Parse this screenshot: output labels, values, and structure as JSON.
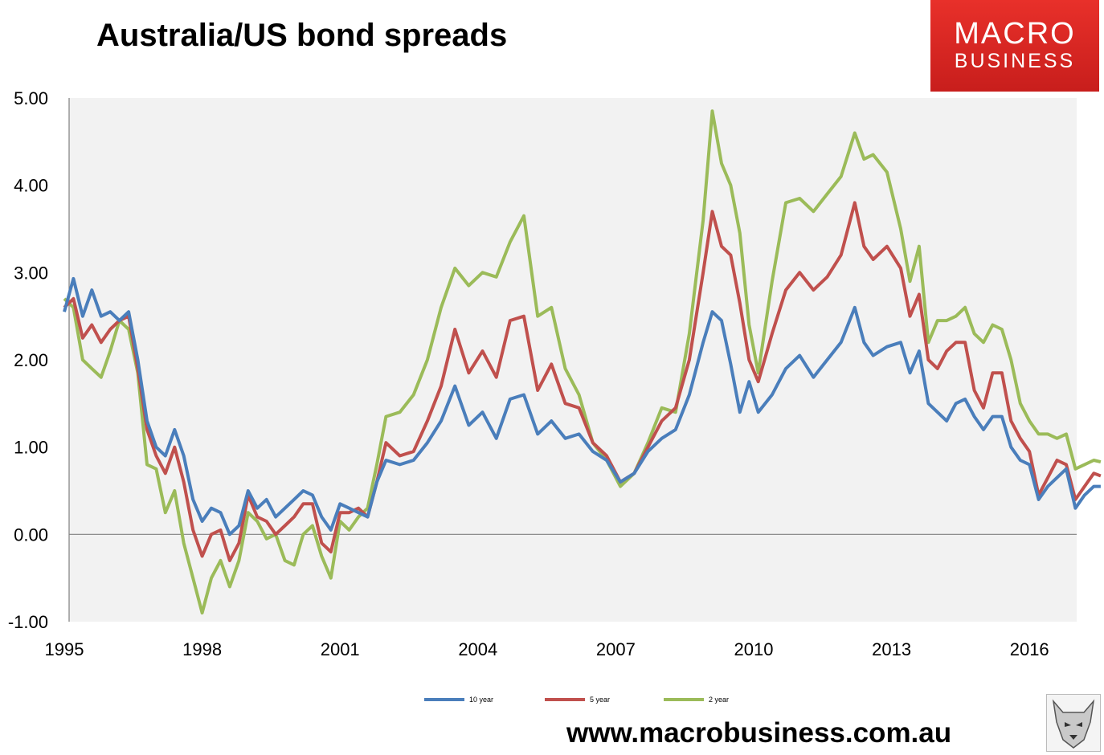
{
  "header": {
    "title": "Australia/US bond spreads"
  },
  "logo": {
    "line1": "MACRO",
    "line2": "BUSINESS",
    "color": "#d42a24"
  },
  "footer": {
    "url": "www.macrobusiness.com.au",
    "mascot_icon": "wolf-icon"
  },
  "chart_data": {
    "type": "line",
    "title": "Australia/US bond spreads",
    "xlabel": "",
    "ylabel": "",
    "xlim": [
      1995,
      2016.9
    ],
    "ylim": [
      -1.0,
      5.0
    ],
    "y_ticks": [
      -1.0,
      0.0,
      1.0,
      2.0,
      3.0,
      4.0,
      5.0
    ],
    "y_tick_labels": [
      "-1.00",
      "0.00",
      "1.00",
      "2.00",
      "3.00",
      "4.00",
      "5.00"
    ],
    "x_ticks": [
      1995,
      1998,
      2001,
      2004,
      2007,
      2010,
      2013,
      2016
    ],
    "x_tick_labels": [
      "1995",
      "1998",
      "2001",
      "2004",
      "2007",
      "2010",
      "2013",
      "2016"
    ],
    "grid": false,
    "legend": "bottom",
    "plot_background": "#f2f2f2",
    "series": [
      {
        "name": "10 year",
        "color": "#4a7ebb",
        "points": [
          [
            1995.0,
            2.55
          ],
          [
            1995.2,
            2.93
          ],
          [
            1995.4,
            2.5
          ],
          [
            1995.6,
            2.8
          ],
          [
            1995.8,
            2.5
          ],
          [
            1996.0,
            2.55
          ],
          [
            1996.2,
            2.45
          ],
          [
            1996.4,
            2.55
          ],
          [
            1996.6,
            2.0
          ],
          [
            1996.8,
            1.3
          ],
          [
            1997.0,
            1.0
          ],
          [
            1997.2,
            0.9
          ],
          [
            1997.4,
            1.2
          ],
          [
            1997.6,
            0.9
          ],
          [
            1997.8,
            0.4
          ],
          [
            1998.0,
            0.15
          ],
          [
            1998.2,
            0.3
          ],
          [
            1998.4,
            0.25
          ],
          [
            1998.6,
            0.0
          ],
          [
            1998.8,
            0.1
          ],
          [
            1999.0,
            0.5
          ],
          [
            1999.2,
            0.3
          ],
          [
            1999.4,
            0.4
          ],
          [
            1999.6,
            0.2
          ],
          [
            1999.8,
            0.3
          ],
          [
            2000.0,
            0.4
          ],
          [
            2000.2,
            0.5
          ],
          [
            2000.4,
            0.45
          ],
          [
            2000.6,
            0.2
          ],
          [
            2000.8,
            0.05
          ],
          [
            2001.0,
            0.35
          ],
          [
            2001.2,
            0.3
          ],
          [
            2001.4,
            0.25
          ],
          [
            2001.6,
            0.2
          ],
          [
            2001.8,
            0.6
          ],
          [
            2002.0,
            0.85
          ],
          [
            2002.3,
            0.8
          ],
          [
            2002.6,
            0.85
          ],
          [
            2002.9,
            1.05
          ],
          [
            2003.2,
            1.3
          ],
          [
            2003.5,
            1.7
          ],
          [
            2003.8,
            1.25
          ],
          [
            2004.1,
            1.4
          ],
          [
            2004.4,
            1.1
          ],
          [
            2004.7,
            1.55
          ],
          [
            2005.0,
            1.6
          ],
          [
            2005.3,
            1.15
          ],
          [
            2005.6,
            1.3
          ],
          [
            2005.9,
            1.1
          ],
          [
            2006.2,
            1.15
          ],
          [
            2006.5,
            0.95
          ],
          [
            2006.8,
            0.85
          ],
          [
            2007.1,
            0.6
          ],
          [
            2007.4,
            0.7
          ],
          [
            2007.7,
            0.95
          ],
          [
            2008.0,
            1.1
          ],
          [
            2008.3,
            1.2
          ],
          [
            2008.6,
            1.6
          ],
          [
            2008.9,
            2.2
          ],
          [
            2009.1,
            2.55
          ],
          [
            2009.3,
            2.45
          ],
          [
            2009.5,
            1.95
          ],
          [
            2009.7,
            1.4
          ],
          [
            2009.9,
            1.75
          ],
          [
            2010.1,
            1.4
          ],
          [
            2010.4,
            1.6
          ],
          [
            2010.7,
            1.9
          ],
          [
            2011.0,
            2.05
          ],
          [
            2011.3,
            1.8
          ],
          [
            2011.6,
            2.0
          ],
          [
            2011.9,
            2.2
          ],
          [
            2012.2,
            2.6
          ],
          [
            2012.4,
            2.2
          ],
          [
            2012.6,
            2.05
          ],
          [
            2012.9,
            2.15
          ],
          [
            2013.2,
            2.2
          ],
          [
            2013.4,
            1.85
          ],
          [
            2013.6,
            2.1
          ],
          [
            2013.8,
            1.5
          ],
          [
            2014.0,
            1.4
          ],
          [
            2014.2,
            1.3
          ],
          [
            2014.4,
            1.5
          ],
          [
            2014.6,
            1.55
          ],
          [
            2014.8,
            1.35
          ],
          [
            2015.0,
            1.2
          ],
          [
            2015.2,
            1.35
          ],
          [
            2015.4,
            1.35
          ],
          [
            2015.6,
            1.0
          ],
          [
            2015.8,
            0.85
          ],
          [
            2016.0,
            0.8
          ],
          [
            2016.2,
            0.4
          ],
          [
            2016.4,
            0.55
          ],
          [
            2016.6,
            0.65
          ],
          [
            2016.8,
            0.75
          ],
          [
            2017.0,
            0.3
          ],
          [
            2017.2,
            0.45
          ],
          [
            2017.4,
            0.55
          ],
          [
            2017.55,
            0.55
          ]
        ]
      },
      {
        "name": "5 year",
        "color": "#c0504d",
        "points": [
          [
            1995.0,
            2.6
          ],
          [
            1995.2,
            2.7
          ],
          [
            1995.4,
            2.25
          ],
          [
            1995.6,
            2.4
          ],
          [
            1995.8,
            2.2
          ],
          [
            1996.0,
            2.35
          ],
          [
            1996.2,
            2.45
          ],
          [
            1996.4,
            2.5
          ],
          [
            1996.6,
            1.9
          ],
          [
            1996.8,
            1.2
          ],
          [
            1997.0,
            0.9
          ],
          [
            1997.2,
            0.7
          ],
          [
            1997.4,
            1.0
          ],
          [
            1997.6,
            0.6
          ],
          [
            1997.8,
            0.05
          ],
          [
            1998.0,
            -0.25
          ],
          [
            1998.2,
            0.0
          ],
          [
            1998.4,
            0.05
          ],
          [
            1998.6,
            -0.3
          ],
          [
            1998.8,
            -0.1
          ],
          [
            1999.0,
            0.45
          ],
          [
            1999.2,
            0.2
          ],
          [
            1999.4,
            0.15
          ],
          [
            1999.6,
            0.0
          ],
          [
            1999.8,
            0.1
          ],
          [
            2000.0,
            0.2
          ],
          [
            2000.2,
            0.35
          ],
          [
            2000.4,
            0.35
          ],
          [
            2000.6,
            -0.1
          ],
          [
            2000.8,
            -0.2
          ],
          [
            2001.0,
            0.25
          ],
          [
            2001.2,
            0.25
          ],
          [
            2001.4,
            0.3
          ],
          [
            2001.6,
            0.2
          ],
          [
            2001.8,
            0.6
          ],
          [
            2002.0,
            1.05
          ],
          [
            2002.3,
            0.9
          ],
          [
            2002.6,
            0.95
          ],
          [
            2002.9,
            1.3
          ],
          [
            2003.2,
            1.7
          ],
          [
            2003.5,
            2.35
          ],
          [
            2003.8,
            1.85
          ],
          [
            2004.1,
            2.1
          ],
          [
            2004.4,
            1.8
          ],
          [
            2004.7,
            2.45
          ],
          [
            2005.0,
            2.5
          ],
          [
            2005.3,
            1.65
          ],
          [
            2005.6,
            1.95
          ],
          [
            2005.9,
            1.5
          ],
          [
            2006.2,
            1.45
          ],
          [
            2006.5,
            1.05
          ],
          [
            2006.8,
            0.9
          ],
          [
            2007.1,
            0.6
          ],
          [
            2007.4,
            0.7
          ],
          [
            2007.7,
            1.0
          ],
          [
            2008.0,
            1.3
          ],
          [
            2008.3,
            1.45
          ],
          [
            2008.6,
            2.0
          ],
          [
            2008.9,
            3.0
          ],
          [
            2009.1,
            3.7
          ],
          [
            2009.3,
            3.3
          ],
          [
            2009.5,
            3.2
          ],
          [
            2009.7,
            2.65
          ],
          [
            2009.9,
            2.0
          ],
          [
            2010.1,
            1.75
          ],
          [
            2010.4,
            2.3
          ],
          [
            2010.7,
            2.8
          ],
          [
            2011.0,
            3.0
          ],
          [
            2011.3,
            2.8
          ],
          [
            2011.6,
            2.95
          ],
          [
            2011.9,
            3.2
          ],
          [
            2012.2,
            3.8
          ],
          [
            2012.4,
            3.3
          ],
          [
            2012.6,
            3.15
          ],
          [
            2012.9,
            3.3
          ],
          [
            2013.2,
            3.05
          ],
          [
            2013.4,
            2.5
          ],
          [
            2013.6,
            2.75
          ],
          [
            2013.8,
            2.0
          ],
          [
            2014.0,
            1.9
          ],
          [
            2014.2,
            2.1
          ],
          [
            2014.4,
            2.2
          ],
          [
            2014.6,
            2.2
          ],
          [
            2014.8,
            1.65
          ],
          [
            2015.0,
            1.45
          ],
          [
            2015.2,
            1.85
          ],
          [
            2015.4,
            1.85
          ],
          [
            2015.6,
            1.3
          ],
          [
            2015.8,
            1.1
          ],
          [
            2016.0,
            0.95
          ],
          [
            2016.2,
            0.45
          ],
          [
            2016.4,
            0.65
          ],
          [
            2016.6,
            0.85
          ],
          [
            2016.8,
            0.8
          ],
          [
            2017.0,
            0.4
          ],
          [
            2017.2,
            0.55
          ],
          [
            2017.4,
            0.7
          ],
          [
            2017.55,
            0.67
          ]
        ]
      },
      {
        "name": "2 year",
        "color": "#9bbb59",
        "points": [
          [
            1995.0,
            2.7
          ],
          [
            1995.2,
            2.6
          ],
          [
            1995.4,
            2.0
          ],
          [
            1995.6,
            1.9
          ],
          [
            1995.8,
            1.8
          ],
          [
            1996.0,
            2.1
          ],
          [
            1996.2,
            2.45
          ],
          [
            1996.4,
            2.35
          ],
          [
            1996.6,
            1.85
          ],
          [
            1996.8,
            0.8
          ],
          [
            1997.0,
            0.75
          ],
          [
            1997.2,
            0.25
          ],
          [
            1997.4,
            0.5
          ],
          [
            1997.6,
            -0.1
          ],
          [
            1997.8,
            -0.5
          ],
          [
            1998.0,
            -0.9
          ],
          [
            1998.2,
            -0.5
          ],
          [
            1998.4,
            -0.3
          ],
          [
            1998.6,
            -0.6
          ],
          [
            1998.8,
            -0.3
          ],
          [
            1999.0,
            0.25
          ],
          [
            1999.2,
            0.15
          ],
          [
            1999.4,
            -0.05
          ],
          [
            1999.6,
            0.0
          ],
          [
            1999.8,
            -0.3
          ],
          [
            2000.0,
            -0.35
          ],
          [
            2000.2,
            0.0
          ],
          [
            2000.4,
            0.1
          ],
          [
            2000.6,
            -0.25
          ],
          [
            2000.8,
            -0.5
          ],
          [
            2001.0,
            0.15
          ],
          [
            2001.2,
            0.05
          ],
          [
            2001.4,
            0.2
          ],
          [
            2001.6,
            0.3
          ],
          [
            2001.8,
            0.8
          ],
          [
            2002.0,
            1.35
          ],
          [
            2002.3,
            1.4
          ],
          [
            2002.6,
            1.6
          ],
          [
            2002.9,
            2.0
          ],
          [
            2003.2,
            2.6
          ],
          [
            2003.5,
            3.05
          ],
          [
            2003.8,
            2.85
          ],
          [
            2004.1,
            3.0
          ],
          [
            2004.4,
            2.95
          ],
          [
            2004.7,
            3.35
          ],
          [
            2005.0,
            3.65
          ],
          [
            2005.3,
            2.5
          ],
          [
            2005.6,
            2.6
          ],
          [
            2005.9,
            1.9
          ],
          [
            2006.2,
            1.6
          ],
          [
            2006.5,
            1.05
          ],
          [
            2006.8,
            0.85
          ],
          [
            2007.1,
            0.55
          ],
          [
            2007.4,
            0.7
          ],
          [
            2007.7,
            1.05
          ],
          [
            2008.0,
            1.45
          ],
          [
            2008.3,
            1.4
          ],
          [
            2008.6,
            2.3
          ],
          [
            2008.9,
            3.6
          ],
          [
            2009.1,
            4.85
          ],
          [
            2009.3,
            4.25
          ],
          [
            2009.5,
            4.0
          ],
          [
            2009.7,
            3.45
          ],
          [
            2009.9,
            2.4
          ],
          [
            2010.1,
            1.85
          ],
          [
            2010.4,
            2.9
          ],
          [
            2010.7,
            3.8
          ],
          [
            2011.0,
            3.85
          ],
          [
            2011.3,
            3.7
          ],
          [
            2011.6,
            3.9
          ],
          [
            2011.9,
            4.1
          ],
          [
            2012.2,
            4.6
          ],
          [
            2012.4,
            4.3
          ],
          [
            2012.6,
            4.35
          ],
          [
            2012.9,
            4.15
          ],
          [
            2013.2,
            3.5
          ],
          [
            2013.4,
            2.9
          ],
          [
            2013.6,
            3.3
          ],
          [
            2013.8,
            2.2
          ],
          [
            2014.0,
            2.45
          ],
          [
            2014.2,
            2.45
          ],
          [
            2014.4,
            2.5
          ],
          [
            2014.6,
            2.6
          ],
          [
            2014.8,
            2.3
          ],
          [
            2015.0,
            2.2
          ],
          [
            2015.2,
            2.4
          ],
          [
            2015.4,
            2.35
          ],
          [
            2015.6,
            2.0
          ],
          [
            2015.8,
            1.5
          ],
          [
            2016.0,
            1.3
          ],
          [
            2016.2,
            1.15
          ],
          [
            2016.4,
            1.15
          ],
          [
            2016.6,
            1.1
          ],
          [
            2016.8,
            1.15
          ],
          [
            2017.0,
            0.75
          ],
          [
            2017.2,
            0.8
          ],
          [
            2017.4,
            0.85
          ],
          [
            2017.55,
            0.83
          ]
        ]
      }
    ]
  }
}
